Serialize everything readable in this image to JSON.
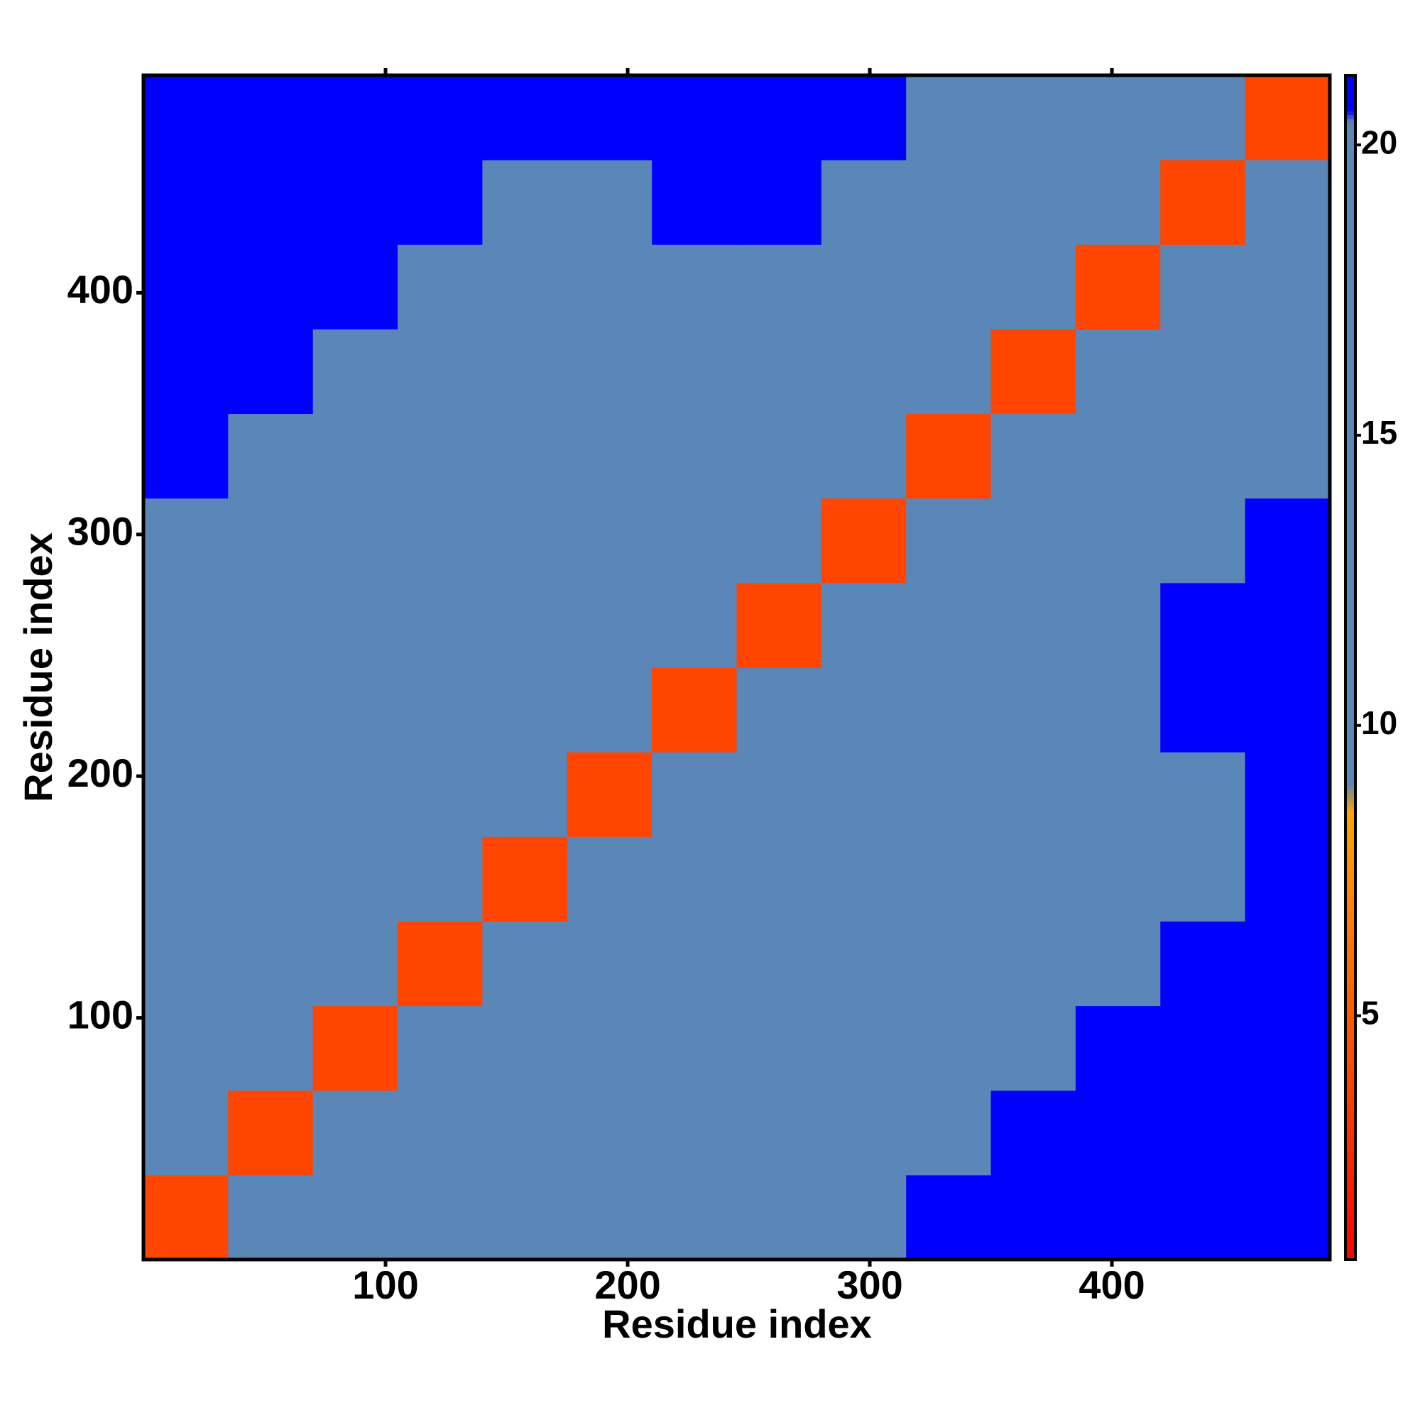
{
  "chart_data": {
    "type": "heatmap",
    "xlabel": "Residue index",
    "ylabel": "Residue index",
    "x_bins": [
      0,
      35,
      70,
      105,
      140,
      175,
      210,
      245,
      280,
      315,
      350,
      385,
      420,
      455,
      490
    ],
    "y_bins": [
      0,
      35,
      70,
      105,
      140,
      175,
      210,
      245,
      280,
      315,
      350,
      385,
      420,
      455,
      490
    ],
    "values": [
      [
        4,
        12,
        14,
        16,
        17,
        17,
        18,
        18,
        19,
        21,
        21,
        21,
        21,
        21
      ],
      [
        12,
        4,
        12,
        14,
        16,
        17,
        17,
        18,
        18,
        19,
        21,
        21,
        21,
        21
      ],
      [
        14,
        12,
        4,
        12,
        14,
        15,
        17,
        18,
        18,
        18,
        20,
        21,
        21,
        21
      ],
      [
        16,
        14,
        12,
        4,
        12,
        14,
        16,
        17,
        17,
        17,
        19,
        19,
        21,
        21
      ],
      [
        17,
        16,
        14,
        12,
        4,
        12,
        14,
        17,
        17,
        16,
        18,
        18,
        20,
        21
      ],
      [
        17,
        17,
        15,
        14,
        12,
        4,
        12,
        15,
        16,
        16,
        18,
        19,
        20,
        21
      ],
      [
        18,
        17,
        17,
        16,
        14,
        12,
        4,
        12,
        15,
        17,
        18,
        19,
        21,
        21
      ],
      [
        18,
        18,
        18,
        17,
        17,
        15,
        12,
        4,
        12,
        14,
        17,
        20,
        21,
        21
      ],
      [
        19,
        18,
        18,
        17,
        17,
        16,
        15,
        12,
        4,
        12,
        15,
        18,
        19,
        21
      ],
      [
        21,
        19,
        18,
        17,
        16,
        16,
        17,
        14,
        12,
        4,
        12,
        17,
        18,
        19
      ],
      [
        21,
        21,
        20,
        19,
        18,
        18,
        18,
        17,
        15,
        12,
        4,
        12,
        16,
        17
      ],
      [
        21,
        21,
        21,
        19,
        18,
        19,
        19,
        20,
        18,
        17,
        12,
        4,
        12,
        14
      ],
      [
        21,
        21,
        21,
        21,
        20,
        20,
        21,
        21,
        19,
        18,
        16,
        12,
        4,
        12
      ],
      [
        21,
        21,
        21,
        21,
        21,
        21,
        21,
        21,
        21,
        19,
        17,
        14,
        12,
        4
      ]
    ],
    "xlim": [
      0,
      490
    ],
    "ylim": [
      0,
      490
    ],
    "xticks": [
      100,
      200,
      300,
      400
    ],
    "yticks": [
      100,
      200,
      300,
      400
    ],
    "colorbar_lim": [
      0.8,
      21.2
    ],
    "colorbar_ticks": [
      5,
      10,
      15,
      20
    ],
    "colorscale": [
      [
        0.8,
        "#ff0000"
      ],
      [
        8.5,
        "#ffa500"
      ],
      [
        9,
        "#5b86b8"
      ],
      [
        20.4,
        "#5b86b8"
      ],
      [
        20.6,
        "#0000ff"
      ]
    ]
  }
}
